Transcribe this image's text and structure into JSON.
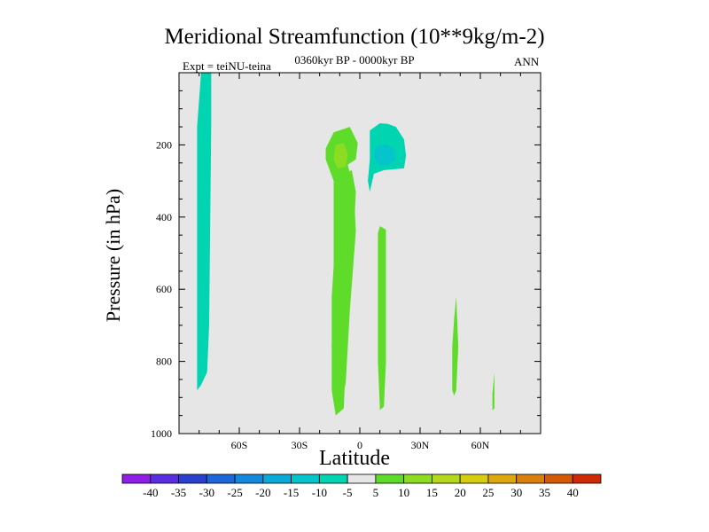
{
  "chart_data": {
    "type": "filled-contour",
    "title": "Meridional Streamfunction (10**9kg/m-2)",
    "subtitle": "0360kyr BP - 0000kyr BP",
    "left_annotation": "Expt = teiNU-teina",
    "right_annotation": "ANN",
    "xlabel": "Latitude",
    "ylabel": "Pressure (in hPa)",
    "x_axis": {
      "range": [
        -90,
        90
      ],
      "ticks": [
        -60,
        -30,
        0,
        30,
        60
      ],
      "tick_labels": [
        "60S",
        "30S",
        "0",
        "30N",
        "60N"
      ]
    },
    "y_axis": {
      "range": [
        1000,
        0
      ],
      "inverted": true,
      "ticks": [
        200,
        400,
        600,
        800,
        1000
      ],
      "tick_labels": [
        "200",
        "400",
        "600",
        "800",
        "1000"
      ]
    },
    "colorbar": {
      "labels": [
        "-40",
        "-35",
        "-30",
        "-25",
        "-20",
        "-15",
        "-10",
        "-5",
        "5",
        "10",
        "15",
        "20",
        "25",
        "30",
        "35",
        "40"
      ],
      "colors": [
        "#8f1ee6",
        "#5a2ee0",
        "#2b3fcf",
        "#1f66d8",
        "#1488dc",
        "#0aa9d8",
        "#05c4cc",
        "#00d4b0",
        "#e6e6e6",
        "#5fdc2a",
        "#8cdc22",
        "#b4d81c",
        "#d6cc12",
        "#dca80e",
        "#d8800a",
        "#d45a06",
        "#d02a04"
      ],
      "zero_color": "#e6e6e6"
    },
    "regions": [
      {
        "name": "sh-high-lat-negative-column",
        "value": -5,
        "color": "#00d4b0",
        "points": [
          [
            -79,
            0
          ],
          [
            -74,
            0
          ],
          [
            -74,
            150
          ],
          [
            -75,
            700
          ],
          [
            -76,
            830
          ],
          [
            -79,
            865
          ],
          [
            -81,
            880
          ],
          [
            -81,
            700
          ],
          [
            -81,
            150
          ]
        ]
      },
      {
        "name": "tropical-upper-positive-cell",
        "value": 5,
        "color": "#5fdc2a",
        "points": [
          [
            -13,
            165
          ],
          [
            -5,
            150
          ],
          [
            -1,
            195
          ],
          [
            -2,
            240
          ],
          [
            -6,
            255
          ],
          [
            -3,
            320
          ],
          [
            -2,
            440
          ],
          [
            -5,
            660
          ],
          [
            -7,
            860
          ],
          [
            -10,
            935
          ],
          [
            -12,
            920
          ],
          [
            -14,
            760
          ],
          [
            -13,
            600
          ],
          [
            -13,
            300
          ],
          [
            -17,
            240
          ],
          [
            -17,
            210
          ]
        ]
      },
      {
        "name": "tropical-upper-positive-core",
        "value": 10,
        "color": "#8cdc22",
        "points": [
          [
            -12,
            200
          ],
          [
            -8,
            195
          ],
          [
            -6,
            225
          ],
          [
            -7,
            260
          ],
          [
            -11,
            265
          ],
          [
            -13,
            240
          ]
        ]
      },
      {
        "name": "tropical-lower-positive-column",
        "value": 5,
        "color": "#5fdc2a",
        "points": [
          [
            -4,
            270
          ],
          [
            -2,
            330
          ],
          [
            -3,
            450
          ],
          [
            -5,
            620
          ],
          [
            -7,
            800
          ],
          [
            -8,
            930
          ],
          [
            -12,
            950
          ],
          [
            -14,
            880
          ],
          [
            -14,
            620
          ],
          [
            -12,
            450
          ],
          [
            -9,
            350
          ],
          [
            -7,
            280
          ]
        ]
      },
      {
        "name": "nh-tropical-upper-negative-cell",
        "value": -5,
        "color": "#00d4b0",
        "points": [
          [
            5,
            160
          ],
          [
            10,
            140
          ],
          [
            14,
            142
          ],
          [
            18,
            150
          ],
          [
            22,
            185
          ],
          [
            23,
            230
          ],
          [
            22,
            265
          ],
          [
            12,
            270
          ],
          [
            7,
            280
          ],
          [
            5,
            330
          ],
          [
            4,
            300
          ],
          [
            5,
            240
          ],
          [
            5,
            190
          ]
        ]
      },
      {
        "name": "nh-tropical-upper-negative-core",
        "value": -10,
        "color": "#05c4cc",
        "points": [
          [
            8,
            205
          ],
          [
            13,
            198
          ],
          [
            17,
            212
          ],
          [
            18,
            240
          ],
          [
            14,
            257
          ],
          [
            9,
            255
          ],
          [
            7,
            230
          ]
        ]
      },
      {
        "name": "nh-tropical-positive-column",
        "value": 5,
        "color": "#5fdc2a",
        "points": [
          [
            10,
            425
          ],
          [
            13,
            435
          ],
          [
            13,
            600
          ],
          [
            13,
            800
          ],
          [
            12,
            925
          ],
          [
            10,
            935
          ],
          [
            9,
            800
          ],
          [
            9,
            600
          ],
          [
            9,
            445
          ]
        ]
      },
      {
        "name": "nh-midlat-positive-sliver",
        "value": 5,
        "color": "#5fdc2a",
        "points": [
          [
            48,
            620
          ],
          [
            49,
            760
          ],
          [
            48,
            880
          ],
          [
            47,
            895
          ],
          [
            46,
            880
          ],
          [
            46,
            760
          ],
          [
            47,
            680
          ]
        ]
      },
      {
        "name": "nh-subpolar-positive-sliver",
        "value": 5,
        "color": "#5fdc2a",
        "points": [
          [
            67,
            830
          ],
          [
            67,
            930
          ],
          [
            66,
            935
          ],
          [
            66,
            890
          ]
        ]
      }
    ]
  }
}
